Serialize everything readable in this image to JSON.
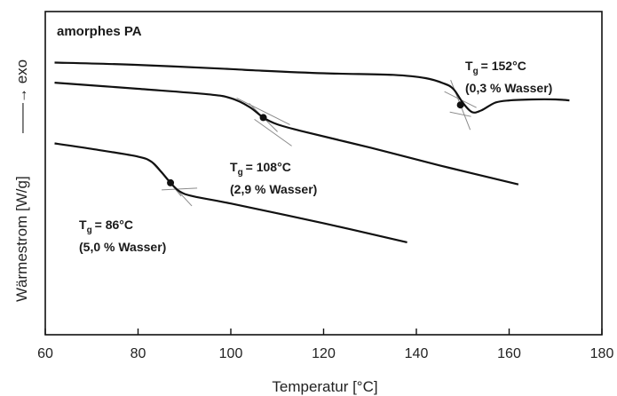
{
  "chart_data": {
    "type": "line",
    "title": "amorphes PA",
    "xlabel": "Temperatur [°C]",
    "ylabel": "Wärmestrom [W/g]",
    "ylabel_arrow": "——→ exo",
    "xlim": [
      60,
      180
    ],
    "ylim": [
      0,
      1
    ],
    "x_ticks": [
      60,
      80,
      100,
      120,
      140,
      160,
      180
    ],
    "y_ticks_shown": false,
    "grid": false,
    "series": [
      {
        "x": [
          62,
          80,
          100,
          105,
          120,
          135,
          142,
          146,
          148,
          150,
          152,
          154,
          157,
          160,
          165,
          170,
          173
        ],
        "y": [
          0.842,
          0.835,
          0.822,
          0.818,
          0.809,
          0.804,
          0.794,
          0.777,
          0.76,
          0.718,
          0.689,
          0.694,
          0.718,
          0.725,
          0.728,
          0.728,
          0.725
        ]
      },
      {
        "x": [
          62,
          80,
          95,
          100,
          104,
          107,
          110,
          115,
          130,
          145,
          162
        ],
        "y": [
          0.78,
          0.761,
          0.744,
          0.732,
          0.705,
          0.672,
          0.651,
          0.631,
          0.579,
          0.524,
          0.465
        ]
      },
      {
        "x": [
          62,
          70,
          80,
          83,
          85,
          87,
          89,
          92,
          100,
          120,
          138
        ],
        "y": [
          0.592,
          0.575,
          0.551,
          0.534,
          0.504,
          0.47,
          0.443,
          0.428,
          0.406,
          0.345,
          0.286
        ]
      }
    ],
    "annotations": [
      {
        "tg_value": "= 152°C",
        "water": "(0,3 % Wasser)",
        "x": 149.5,
        "y": 0.711
      },
      {
        "tg_value": "= 108°C",
        "water": "(2,9 % Wasser)",
        "x": 107,
        "y": 0.672
      },
      {
        "tg_value": "= 86°C",
        "water": "(5,0 % Wasser)",
        "x": 87,
        "y": 0.47
      }
    ],
    "tg_symbol": "T",
    "tg_subscript": "g"
  }
}
